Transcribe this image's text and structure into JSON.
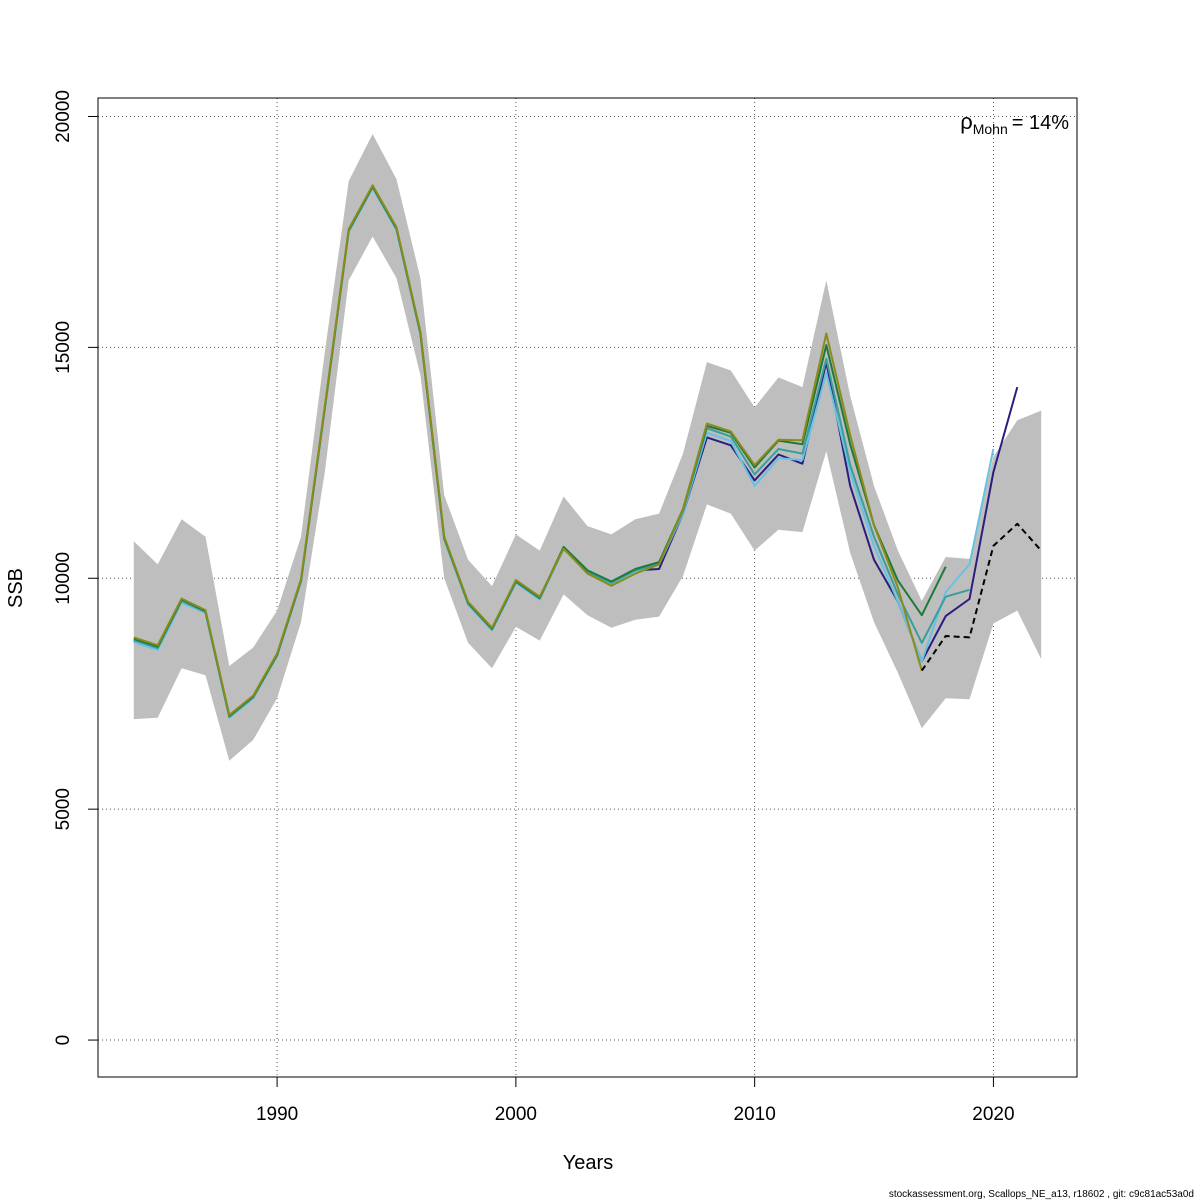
{
  "chart_data": {
    "type": "line",
    "title": "",
    "xlabel": "Years",
    "ylabel": "SSB",
    "xlim": [
      1982.5,
      2023.5
    ],
    "ylim": [
      -800,
      20400
    ],
    "x_ticks": [
      1990,
      2000,
      2010,
      2020
    ],
    "y_ticks": [
      0,
      5000,
      10000,
      15000,
      20000
    ],
    "grid": true,
    "annotation": {
      "rho_symbol": "ρ",
      "rho_subscript": "Mohn",
      "rho_value": "= 14%"
    },
    "confidence_band": {
      "x": [
        1984,
        1985,
        1986,
        1987,
        1988,
        1989,
        1990,
        1991,
        1992,
        1993,
        1994,
        1995,
        1996,
        1997,
        1998,
        1999,
        2000,
        2001,
        2002,
        2003,
        2004,
        2005,
        2006,
        2007,
        2008,
        2009,
        2010,
        2011,
        2012,
        2013,
        2014,
        2015,
        2016,
        2017,
        2018,
        2019,
        2020,
        2021,
        2022
      ],
      "lower": [
        6950,
        6980,
        8050,
        7900,
        6050,
        6500,
        7400,
        9050,
        12300,
        16450,
        17400,
        16500,
        14400,
        10000,
        8600,
        8050,
        8950,
        8650,
        9650,
        9200,
        8930,
        9100,
        9170,
        10050,
        11600,
        11400,
        10600,
        11050,
        11000,
        12750,
        10550,
        9050,
        7950,
        6750,
        7400,
        7380,
        9020,
        9300,
        8250
      ],
      "upper": [
        10800,
        10300,
        11280,
        10900,
        8100,
        8500,
        9300,
        10900,
        14900,
        18600,
        19620,
        18640,
        16500,
        11800,
        10400,
        9830,
        10950,
        10600,
        11770,
        11130,
        10950,
        11280,
        11400,
        12700,
        14680,
        14500,
        13700,
        14350,
        14140,
        16450,
        13950,
        12000,
        10600,
        9510,
        10460,
        10420,
        12630,
        13420,
        13630
      ],
      "color": "#bebebe"
    },
    "series": [
      {
        "color": "#2b1d7f",
        "x": [
          1984,
          1985,
          1986,
          1987,
          1988,
          1989,
          1990,
          1991,
          1992,
          1993,
          1994,
          1995,
          1996,
          1997,
          1998,
          1999,
          2000,
          2001,
          2002,
          2003,
          2004,
          2005,
          2006,
          2007,
          2008,
          2009,
          2010,
          2011,
          2012,
          2013,
          2014,
          2015,
          2016,
          2017,
          2018,
          2019,
          2020,
          2021
        ],
        "values": [
          8650,
          8480,
          9500,
          9270,
          7000,
          7410,
          8330,
          9940,
          13680,
          17530,
          18480,
          17560,
          15300,
          10860,
          9450,
          8890,
          9920,
          9560,
          10650,
          10150,
          9910,
          10170,
          10200,
          11400,
          13050,
          12880,
          12120,
          12680,
          12480,
          14680,
          12000,
          10400,
          9500,
          8200,
          9180,
          9550,
          12300,
          14140
        ]
      },
      {
        "color": "#66c2e0",
        "x": [
          1984,
          1985,
          1986,
          1987,
          1988,
          1989,
          1990,
          1991,
          1992,
          1993,
          1994,
          1995,
          1996,
          1997,
          1998,
          1999,
          2000,
          2001,
          2002,
          2003,
          2004,
          2005,
          2006,
          2007,
          2008,
          2009,
          2010,
          2011,
          2012,
          2013,
          2014,
          2015,
          2016,
          2017,
          2018,
          2019,
          2020
        ],
        "values": [
          8620,
          8450,
          9470,
          9250,
          6980,
          7400,
          8310,
          9920,
          13650,
          17500,
          18450,
          17540,
          15280,
          10840,
          9430,
          8870,
          9900,
          9540,
          10630,
          10130,
          9890,
          10150,
          10300,
          11400,
          13150,
          12970,
          12000,
          12600,
          12560,
          14450,
          12300,
          10700,
          9500,
          8200,
          9700,
          10300,
          12800
        ]
      },
      {
        "color": "#3a9e9b",
        "x": [
          1984,
          1985,
          1986,
          1987,
          1988,
          1989,
          1990,
          1991,
          1992,
          1993,
          1994,
          1995,
          1996,
          1997,
          1998,
          1999,
          2000,
          2001,
          2002,
          2003,
          2004,
          2005,
          2006,
          2007,
          2008,
          2009,
          2010,
          2011,
          2012,
          2013,
          2014,
          2015,
          2016,
          2017,
          2018,
          2019
        ],
        "values": [
          8660,
          8490,
          9510,
          9270,
          7000,
          7420,
          8330,
          9940,
          13680,
          17520,
          18470,
          17560,
          15300,
          10860,
          9450,
          8890,
          9920,
          9560,
          10650,
          10140,
          9900,
          10170,
          10320,
          11450,
          13250,
          13070,
          12250,
          12800,
          12700,
          14750,
          12450,
          10900,
          9650,
          8600,
          9600,
          9750
        ]
      },
      {
        "color": "#1e7a3a",
        "x": [
          1984,
          1985,
          1986,
          1987,
          1988,
          1989,
          1990,
          1991,
          1992,
          1993,
          1994,
          1995,
          1996,
          1997,
          1998,
          1999,
          2000,
          2001,
          2002,
          2003,
          2004,
          2005,
          2006,
          2007,
          2008,
          2009,
          2010,
          2011,
          2012,
          2013,
          2014,
          2015,
          2016,
          2017,
          2018
        ],
        "values": [
          8690,
          8520,
          9540,
          9290,
          7020,
          7440,
          8350,
          9960,
          13700,
          17540,
          18490,
          17580,
          15320,
          10880,
          9470,
          8910,
          9940,
          9580,
          10680,
          10170,
          9930,
          10200,
          10350,
          11500,
          13300,
          13150,
          12400,
          12980,
          12900,
          15050,
          12900,
          11150,
          9950,
          9200,
          10250
        ]
      },
      {
        "color": "#8b8b1a",
        "x": [
          1984,
          1985,
          1986,
          1987,
          1988,
          1989,
          1990,
          1991,
          1992,
          1993,
          1994,
          1995,
          1996,
          1997,
          1998,
          1999,
          2000,
          2001,
          2002,
          2003,
          2004,
          2005,
          2006,
          2007,
          2008,
          2009,
          2010,
          2011,
          2012,
          2013,
          2014,
          2015,
          2016,
          2017
        ],
        "values": [
          8720,
          8550,
          9560,
          9310,
          7040,
          7460,
          8370,
          9980,
          13720,
          17560,
          18510,
          17600,
          15340,
          10900,
          9490,
          8930,
          9960,
          9600,
          10640,
          10100,
          9840,
          10100,
          10300,
          11500,
          13350,
          13180,
          12450,
          13000,
          12990,
          15300,
          13100,
          11150,
          9800,
          8000
        ]
      },
      {
        "color": "#000000",
        "dashed": true,
        "x": [
          2017,
          2018,
          2019,
          2020,
          2021,
          2022
        ],
        "values": [
          8000,
          8750,
          8720,
          10700,
          11180,
          10600
        ]
      }
    ]
  },
  "footer": "stockassessment.org, Scallops_NE_a13, r18602 , git: c9c81ac53a0d"
}
